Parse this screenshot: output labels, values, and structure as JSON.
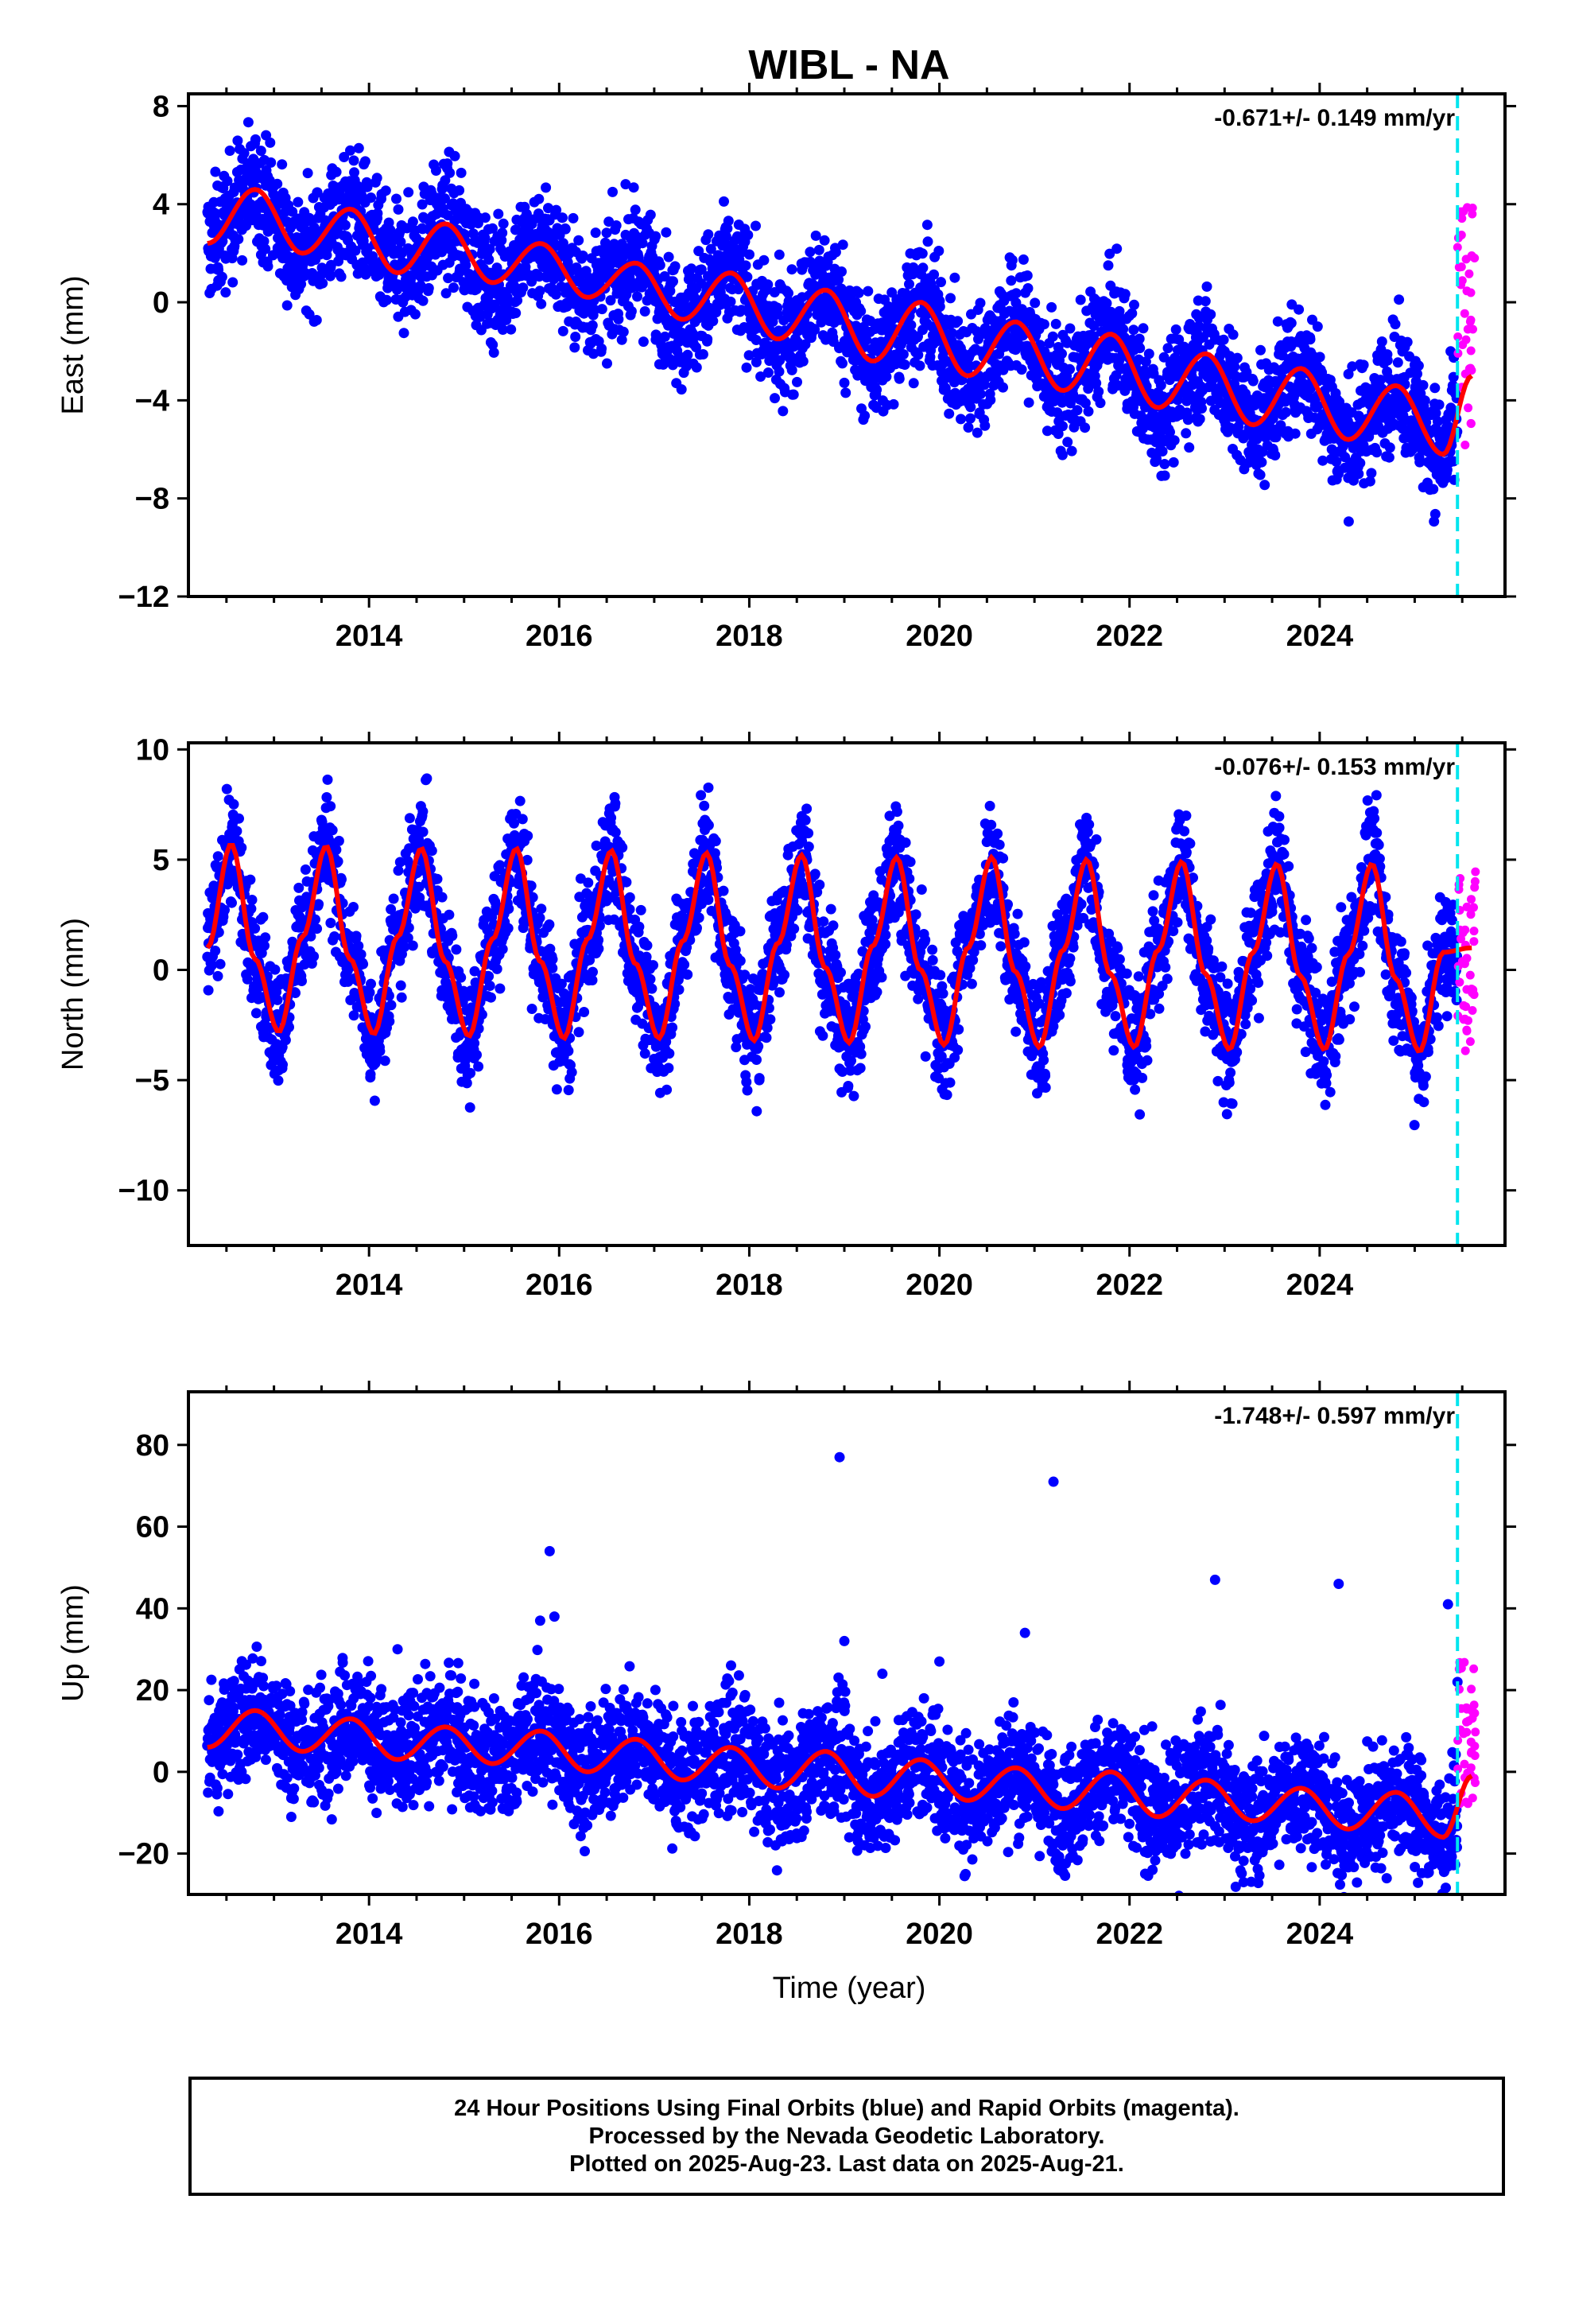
{
  "title": "WIBL - NA",
  "colors": {
    "final": "#0000ff",
    "rapid": "#ff00ff",
    "model": "#ff0000",
    "marker": "#00e5ee"
  },
  "x_axis": {
    "label": "Time (year)",
    "range": [
      2012.1,
      2025.95
    ],
    "ticks": [
      "2014",
      "2016",
      "2018",
      "2020",
      "2022",
      "2024"
    ],
    "minor_tick_step": 0.5
  },
  "caption": [
    "24 Hour Positions Using Final Orbits (blue) and Rapid Orbits (magenta).",
    "Processed by the Nevada Geodetic Laboratory.",
    "Plotted on 2025-Aug-23. Last data on 2025-Aug-21."
  ],
  "chart_data": [
    {
      "type": "scatter",
      "component": "East",
      "ylabel": "East (mm)",
      "rate_label": "-0.671+/- 0.149 mm/yr",
      "xlim": [
        2012.1,
        2025.95
      ],
      "ylim": [
        -12,
        8.5
      ],
      "yticks": [
        -12,
        -8,
        -4,
        0,
        4,
        8
      ],
      "final_orbits_range": [
        2012.3,
        2025.45
      ],
      "rapid_orbits_range": [
        2025.45,
        2025.64
      ],
      "rapid_orbits_spread_mm": [
        -6,
        4
      ],
      "change_marker_year": 2025.45,
      "model_curve": {
        "x": [
          2012.3,
          2012.8,
          2013.3,
          2013.8,
          2014.3,
          2014.8,
          2015.3,
          2015.8,
          2016.3,
          2016.8,
          2017.3,
          2017.8,
          2018.3,
          2018.8,
          2019.3,
          2019.8,
          2020.3,
          2020.8,
          2021.3,
          2021.8,
          2022.3,
          2022.8,
          2023.3,
          2023.8,
          2024.3,
          2024.8,
          2025.3,
          2025.6
        ],
        "y": [
          2.4,
          4.6,
          2.0,
          3.8,
          1.2,
          3.2,
          0.8,
          2.4,
          0.2,
          1.6,
          -0.7,
          1.2,
          -1.5,
          0.5,
          -2.4,
          0.0,
          -3.0,
          -0.8,
          -3.6,
          -1.3,
          -4.3,
          -2.1,
          -5.0,
          -2.7,
          -5.6,
          -3.4,
          -6.2,
          -3.0
        ]
      }
    },
    {
      "type": "scatter",
      "component": "North",
      "ylabel": "North (mm)",
      "rate_label": "-0.076+/- 0.153 mm/yr",
      "xlim": [
        2012.1,
        2025.95
      ],
      "ylim": [
        -12.5,
        10.3
      ],
      "yticks": [
        -10,
        -5,
        0,
        5,
        10
      ],
      "final_orbits_range": [
        2012.3,
        2025.45
      ],
      "rapid_orbits_range": [
        2025.45,
        2025.64
      ],
      "rapid_orbits_spread_mm": [
        -4,
        4.5
      ],
      "change_marker_year": 2025.45,
      "model_curve": {
        "x": [
          2012.3,
          2012.55,
          2012.8,
          2013.05,
          2013.3,
          2013.55,
          2013.8,
          2014.05,
          2014.3,
          2014.55,
          2014.8,
          2015.05,
          2015.3,
          2015.55,
          2015.8,
          2016.05,
          2016.3,
          2016.55,
          2016.8,
          2017.05,
          2017.3,
          2017.55,
          2017.8,
          2018.05,
          2018.3,
          2018.55,
          2018.8,
          2019.05,
          2019.3,
          2019.55,
          2019.8,
          2020.05,
          2020.3,
          2020.55,
          2020.8,
          2021.05,
          2021.3,
          2021.55,
          2021.8,
          2022.05,
          2022.3,
          2022.55,
          2022.8,
          2023.05,
          2023.3,
          2023.55,
          2023.8,
          2024.05,
          2024.3,
          2024.55,
          2024.8,
          2025.05,
          2025.3,
          2025.6
        ],
        "y": [
          1.0,
          5.7,
          0.5,
          -2.8,
          1.5,
          5.6,
          0.5,
          -2.9,
          1.5,
          5.5,
          0.4,
          -3.0,
          1.4,
          5.5,
          0.4,
          -3.1,
          1.4,
          5.4,
          0.3,
          -3.1,
          1.3,
          5.3,
          0.2,
          -3.2,
          1.2,
          5.2,
          0.1,
          -3.3,
          1.1,
          5.1,
          0.0,
          -3.4,
          1.0,
          5.1,
          -0.1,
          -3.5,
          0.9,
          5.0,
          -0.2,
          -3.5,
          0.9,
          4.9,
          -0.2,
          -3.6,
          0.8,
          4.8,
          -0.3,
          -3.6,
          0.7,
          4.8,
          -0.4,
          -3.7,
          0.8,
          1.0
        ]
      }
    },
    {
      "type": "scatter",
      "component": "Up",
      "ylabel": "Up (mm)",
      "rate_label": "-1.748+/- 0.597 mm/yr",
      "xlim": [
        2012.1,
        2025.95
      ],
      "ylim": [
        -30,
        93
      ],
      "yticks": [
        -20,
        0,
        20,
        40,
        60,
        80
      ],
      "final_orbits_range": [
        2012.3,
        2025.45
      ],
      "rapid_orbits_range": [
        2025.45,
        2025.64
      ],
      "rapid_orbits_spread_mm": [
        -10,
        27
      ],
      "change_marker_year": 2025.45,
      "outliers": {
        "x": [
          2015.9,
          2015.95,
          2015.8,
          2018.95,
          2019.0,
          2020.0,
          2021.2,
          2022.9,
          2024.2,
          2019.4,
          2020.9,
          2023.2,
          2025.35,
          2014.3,
          2025.45
        ],
        "y": [
          54,
          38,
          37,
          77,
          32,
          27,
          71,
          47,
          46,
          24,
          34,
          -27,
          41,
          30,
          22
        ]
      },
      "model_curve": {
        "x": [
          2012.3,
          2012.8,
          2013.3,
          2013.8,
          2014.3,
          2014.8,
          2015.3,
          2015.8,
          2016.3,
          2016.8,
          2017.3,
          2017.8,
          2018.3,
          2018.8,
          2019.3,
          2019.8,
          2020.3,
          2020.8,
          2021.3,
          2021.8,
          2022.3,
          2022.8,
          2023.3,
          2023.8,
          2024.3,
          2024.8,
          2025.3,
          2025.6
        ],
        "y": [
          6,
          15,
          5,
          13,
          3,
          11,
          2,
          10,
          0,
          8,
          -2,
          6,
          -4,
          5,
          -6,
          3,
          -7,
          1,
          -9,
          0,
          -11,
          -2,
          -12,
          -4,
          -14,
          -5,
          -16,
          -1
        ]
      }
    }
  ]
}
